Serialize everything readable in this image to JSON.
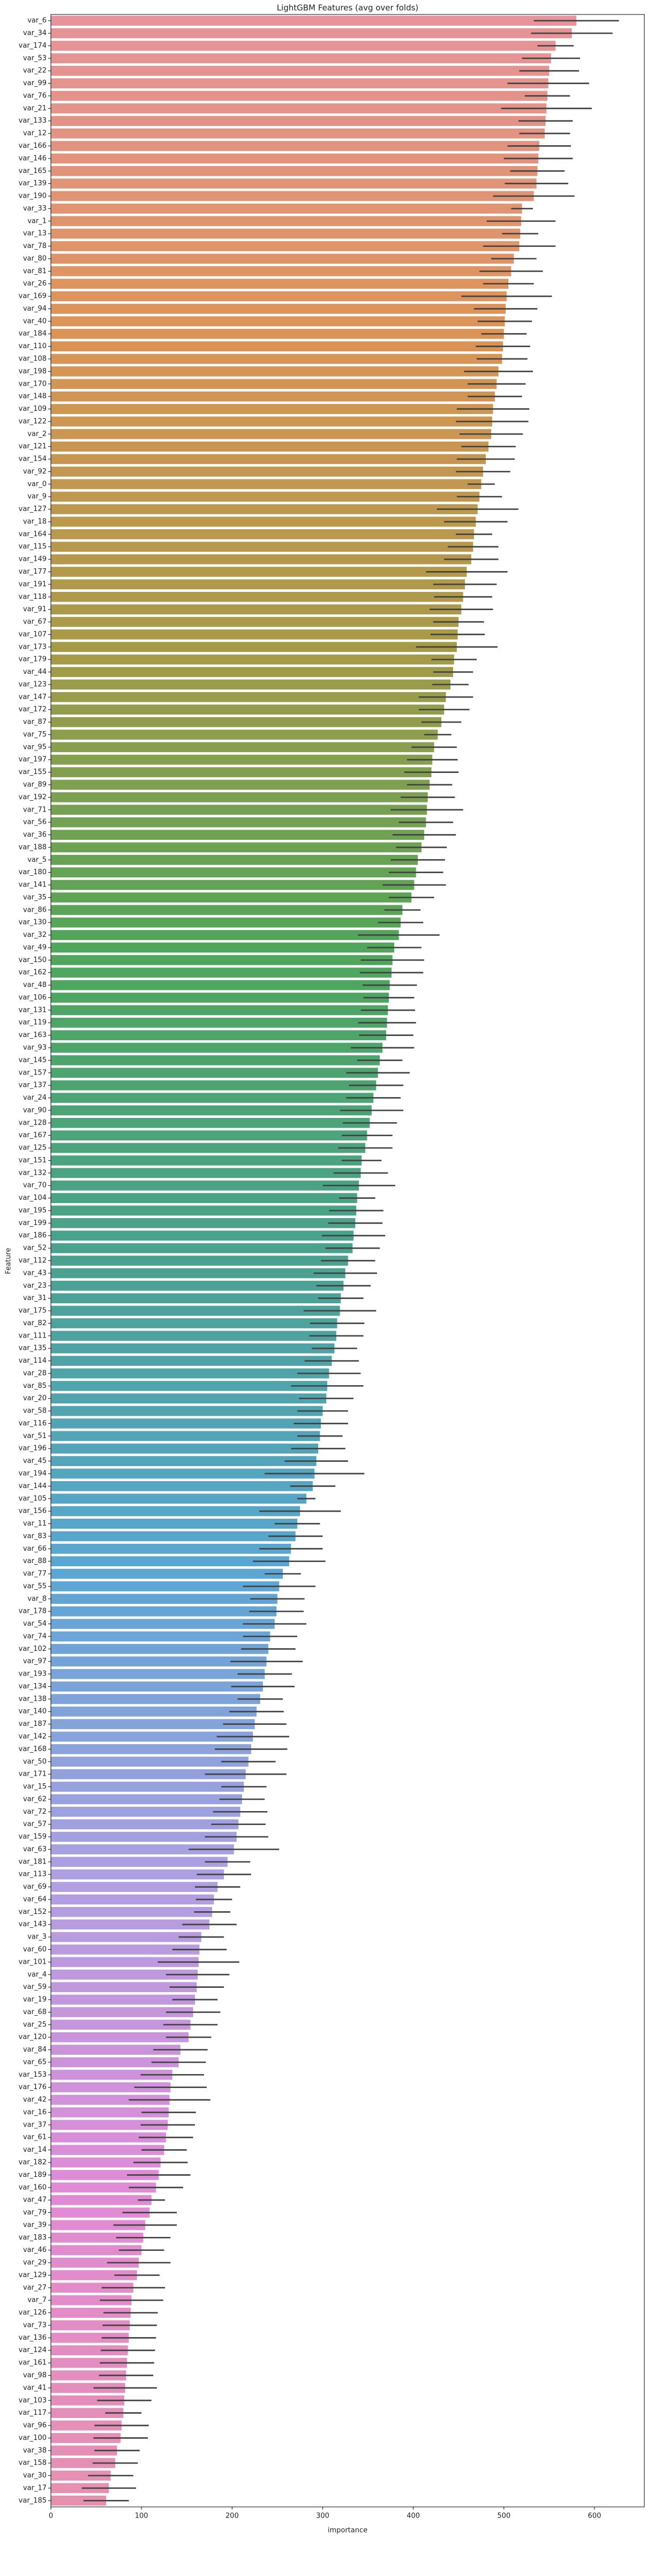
{
  "chart_data": {
    "type": "barh",
    "title": "LightGBM Features (avg over folds)",
    "xlabel": "importance",
    "ylabel": "Feature",
    "categories": [
      "var_6",
      "var_34",
      "var_174",
      "var_53",
      "var_22",
      "var_99",
      "var_76",
      "var_21",
      "var_133",
      "var_12",
      "var_166",
      "var_146",
      "var_165",
      "var_139",
      "var_190",
      "var_33",
      "var_1",
      "var_13",
      "var_78",
      "var_80",
      "var_81",
      "var_26",
      "var_169",
      "var_94",
      "var_40",
      "var_184",
      "var_110",
      "var_108",
      "var_198",
      "var_170",
      "var_148",
      "var_109",
      "var_122",
      "var_2",
      "var_121",
      "var_154",
      "var_92",
      "var_0",
      "var_9",
      "var_127",
      "var_18",
      "var_164",
      "var_115",
      "var_149",
      "var_177",
      "var_191",
      "var_118",
      "var_91",
      "var_67",
      "var_107",
      "var_173",
      "var_179",
      "var_44",
      "var_123",
      "var_147",
      "var_172",
      "var_87",
      "var_75",
      "var_95",
      "var_197",
      "var_155",
      "var_89",
      "var_192",
      "var_71",
      "var_56",
      "var_36",
      "var_188",
      "var_5",
      "var_180",
      "var_141",
      "var_35",
      "var_86",
      "var_130",
      "var_32",
      "var_49",
      "var_150",
      "var_162",
      "var_48",
      "var_106",
      "var_131",
      "var_119",
      "var_163",
      "var_93",
      "var_145",
      "var_157",
      "var_137",
      "var_24",
      "var_90",
      "var_128",
      "var_167",
      "var_125",
      "var_151",
      "var_132",
      "var_70",
      "var_104",
      "var_195",
      "var_199",
      "var_186",
      "var_52",
      "var_112",
      "var_43",
      "var_23",
      "var_31",
      "var_175",
      "var_82",
      "var_111",
      "var_135",
      "var_114",
      "var_28",
      "var_85",
      "var_20",
      "var_58",
      "var_116",
      "var_51",
      "var_196",
      "var_45",
      "var_194",
      "var_144",
      "var_105",
      "var_156",
      "var_11",
      "var_83",
      "var_66",
      "var_88",
      "var_77",
      "var_55",
      "var_8",
      "var_178",
      "var_54",
      "var_74",
      "var_102",
      "var_97",
      "var_193",
      "var_134",
      "var_138",
      "var_140",
      "var_187",
      "var_142",
      "var_168",
      "var_50",
      "var_171",
      "var_15",
      "var_62",
      "var_72",
      "var_57",
      "var_159",
      "var_63",
      "var_181",
      "var_113",
      "var_69",
      "var_64",
      "var_152",
      "var_143",
      "var_3",
      "var_60",
      "var_101",
      "var_4",
      "var_59",
      "var_19",
      "var_68",
      "var_25",
      "var_120",
      "var_84",
      "var_65",
      "var_153",
      "var_176",
      "var_42",
      "var_16",
      "var_37",
      "var_61",
      "var_14",
      "var_182",
      "var_189",
      "var_160",
      "var_47",
      "var_79",
      "var_39",
      "var_183",
      "var_46",
      "var_29",
      "var_129",
      "var_27",
      "var_7",
      "var_126",
      "var_73",
      "var_136",
      "var_124",
      "var_161",
      "var_98",
      "var_41",
      "var_103",
      "var_117",
      "var_96",
      "var_100",
      "var_38",
      "var_158",
      "var_30",
      "var_17",
      "var_185"
    ],
    "values": [
      580,
      575,
      557,
      552,
      550,
      549,
      548,
      547,
      546,
      545,
      539,
      538,
      537,
      536,
      533,
      520,
      519,
      518,
      517,
      511,
      508,
      505,
      503,
      502,
      501,
      500,
      499,
      498,
      494,
      492,
      490,
      488,
      487,
      486,
      483,
      480,
      477,
      475,
      473,
      471,
      469,
      467,
      466,
      464,
      459,
      457,
      455,
      453,
      450,
      449,
      448,
      445,
      444,
      441,
      436,
      434,
      431,
      427,
      423,
      421,
      420,
      418,
      416,
      415,
      414,
      412,
      409,
      405,
      403,
      401,
      398,
      388,
      386,
      384,
      379,
      377,
      376,
      374,
      373,
      372,
      371,
      370,
      366,
      363,
      361,
      359,
      356,
      354,
      352,
      349,
      347,
      343,
      342,
      340,
      338,
      337,
      336,
      334,
      333,
      328,
      325,
      323,
      320,
      319,
      316,
      315,
      313,
      310,
      307,
      305,
      304,
      300,
      298,
      297,
      295,
      293,
      291,
      289,
      282,
      275,
      272,
      270,
      265,
      263,
      256,
      252,
      250,
      249,
      247,
      242,
      240,
      238,
      236,
      234,
      231,
      227,
      225,
      223,
      221,
      218,
      215,
      213,
      211,
      209,
      207,
      205,
      202,
      195,
      191,
      184,
      180,
      178,
      175,
      166,
      164,
      163,
      162,
      161,
      159,
      157,
      154,
      152,
      143,
      141,
      134,
      132,
      131,
      130,
      129,
      127,
      125,
      121,
      119,
      116,
      111,
      109,
      104,
      102,
      100,
      97,
      95,
      91,
      89,
      88,
      87,
      86,
      85,
      84,
      83,
      82,
      81,
      80,
      78,
      77,
      73,
      71,
      66,
      64,
      61
    ],
    "errors": [
      47,
      45,
      20,
      32,
      33,
      45,
      25,
      50,
      30,
      28,
      35,
      38,
      30,
      35,
      45,
      12,
      38,
      20,
      40,
      25,
      35,
      28,
      50,
      35,
      30,
      25,
      30,
      28,
      38,
      32,
      30,
      40,
      40,
      35,
      30,
      32,
      30,
      15,
      25,
      45,
      35,
      20,
      28,
      30,
      45,
      35,
      32,
      35,
      28,
      30,
      45,
      25,
      22,
      20,
      30,
      28,
      22,
      15,
      25,
      28,
      30,
      25,
      30,
      40,
      30,
      35,
      28,
      30,
      30,
      35,
      25,
      20,
      25,
      45,
      30,
      35,
      35,
      30,
      28,
      30,
      32,
      30,
      35,
      25,
      35,
      30,
      30,
      35,
      30,
      28,
      30,
      22,
      30,
      40,
      20,
      30,
      30,
      35,
      30,
      30,
      35,
      30,
      25,
      40,
      30,
      30,
      25,
      30,
      35,
      40,
      30,
      28,
      30,
      25,
      30,
      35,
      55,
      25,
      10,
      45,
      25,
      30,
      35,
      40,
      20,
      40,
      30,
      30,
      35,
      30,
      30,
      40,
      30,
      35,
      25,
      30,
      35,
      40,
      40,
      30,
      45,
      25,
      25,
      30,
      30,
      35,
      50,
      25,
      30,
      25,
      20,
      20,
      30,
      25,
      30,
      45,
      35,
      30,
      25,
      30,
      30,
      25,
      30,
      30,
      35,
      40,
      45,
      30,
      30,
      30,
      25,
      30,
      35,
      30,
      15,
      30,
      35,
      30,
      25,
      35,
      25,
      35,
      35,
      30,
      30,
      30,
      30,
      30,
      30,
      35,
      30,
      20,
      30,
      30,
      25,
      25,
      25,
      30,
      25
    ],
    "color_stops": [
      "#e6939b",
      "#dc9456",
      "#a89a48",
      "#4fa65a",
      "#4aa290",
      "#5aa6d4",
      "#b09fe2",
      "#e08bd6",
      "#e690b0"
    ],
    "error_color": "#424242",
    "xlim": [
      0,
      655
    ],
    "xticks": [
      0,
      100,
      200,
      300,
      400,
      500,
      600
    ]
  }
}
